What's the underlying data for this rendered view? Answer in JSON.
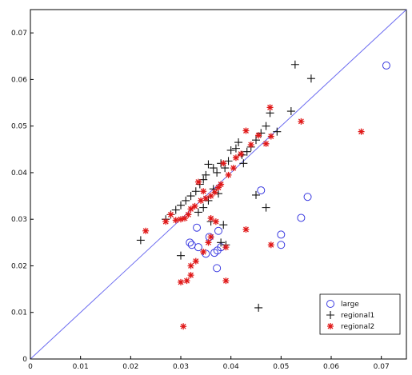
{
  "chart_data": {
    "type": "scatter",
    "title": "",
    "xlabel": "",
    "ylabel": "",
    "xlim": [
      0,
      0.075
    ],
    "ylim": [
      0,
      0.075
    ],
    "x_ticks": [
      "0",
      "0.01",
      "0.02",
      "0.03",
      "0.04",
      "0.05",
      "0.06",
      "0.07"
    ],
    "y_ticks": [
      "0",
      "0.01",
      "0.02",
      "0.03",
      "0.04",
      "0.05",
      "0.06",
      "0.07"
    ],
    "legend_position": "bottom-right",
    "reference_line": {
      "x": [
        0,
        0.075
      ],
      "y": [
        0,
        0.075
      ],
      "color": "#6a6af0"
    },
    "series": [
      {
        "name": "large",
        "marker": "circle",
        "color": "#3a3ae0",
        "points": [
          [
            0.071,
            0.063
          ],
          [
            0.0553,
            0.0348
          ],
          [
            0.054,
            0.0303
          ],
          [
            0.05,
            0.0267
          ],
          [
            0.05,
            0.0245
          ],
          [
            0.046,
            0.0362
          ],
          [
            0.038,
            0.024
          ],
          [
            0.0375,
            0.0275
          ],
          [
            0.0373,
            0.0233
          ],
          [
            0.0367,
            0.0228
          ],
          [
            0.0357,
            0.0262
          ],
          [
            0.035,
            0.0226
          ],
          [
            0.0335,
            0.024
          ],
          [
            0.0332,
            0.0282
          ],
          [
            0.0322,
            0.0245
          ],
          [
            0.0318,
            0.025
          ],
          [
            0.0372,
            0.0195
          ]
        ]
      },
      {
        "name": "regional1",
        "marker": "plus",
        "color": "#111111",
        "points": [
          [
            0.056,
            0.0602
          ],
          [
            0.0528,
            0.0632
          ],
          [
            0.052,
            0.0532
          ],
          [
            0.0492,
            0.0488
          ],
          [
            0.0478,
            0.0528
          ],
          [
            0.047,
            0.05
          ],
          [
            0.046,
            0.0485
          ],
          [
            0.045,
            0.047
          ],
          [
            0.044,
            0.0455
          ],
          [
            0.0432,
            0.0445
          ],
          [
            0.0422,
            0.0438
          ],
          [
            0.0415,
            0.0465
          ],
          [
            0.041,
            0.0452
          ],
          [
            0.04,
            0.0448
          ],
          [
            0.0395,
            0.0425
          ],
          [
            0.0388,
            0.041
          ],
          [
            0.038,
            0.042
          ],
          [
            0.0372,
            0.04
          ],
          [
            0.0365,
            0.041
          ],
          [
            0.0355,
            0.0418
          ],
          [
            0.035,
            0.0395
          ],
          [
            0.0345,
            0.0385
          ],
          [
            0.0338,
            0.0375
          ],
          [
            0.033,
            0.036
          ],
          [
            0.032,
            0.035
          ],
          [
            0.031,
            0.034
          ],
          [
            0.03,
            0.033
          ],
          [
            0.029,
            0.032
          ],
          [
            0.028,
            0.031
          ],
          [
            0.027,
            0.03
          ],
          [
            0.022,
            0.0255
          ],
          [
            0.03,
            0.0222
          ],
          [
            0.036,
            0.0295
          ],
          [
            0.0385,
            0.0288
          ],
          [
            0.039,
            0.0245
          ],
          [
            0.038,
            0.025
          ],
          [
            0.045,
            0.0352
          ],
          [
            0.047,
            0.0325
          ],
          [
            0.0455,
            0.011
          ],
          [
            0.0335,
            0.0315
          ],
          [
            0.0345,
            0.0325
          ],
          [
            0.0355,
            0.034
          ],
          [
            0.0365,
            0.0365
          ],
          [
            0.0375,
            0.0355
          ],
          [
            0.0425,
            0.042
          ]
        ]
      },
      {
        "name": "regional2",
        "marker": "star",
        "color": "#e01818",
        "points": [
          [
            0.066,
            0.0488
          ],
          [
            0.054,
            0.051
          ],
          [
            0.0478,
            0.054
          ],
          [
            0.048,
            0.0478
          ],
          [
            0.047,
            0.0462
          ],
          [
            0.0455,
            0.048
          ],
          [
            0.044,
            0.046
          ],
          [
            0.043,
            0.049
          ],
          [
            0.042,
            0.044
          ],
          [
            0.041,
            0.0432
          ],
          [
            0.0405,
            0.041
          ],
          [
            0.0395,
            0.0395
          ],
          [
            0.0385,
            0.042
          ],
          [
            0.038,
            0.0375
          ],
          [
            0.0375,
            0.0368
          ],
          [
            0.0368,
            0.0358
          ],
          [
            0.036,
            0.035
          ],
          [
            0.035,
            0.0345
          ],
          [
            0.034,
            0.034
          ],
          [
            0.0335,
            0.038
          ],
          [
            0.0328,
            0.0328
          ],
          [
            0.032,
            0.0322
          ],
          [
            0.0315,
            0.031
          ],
          [
            0.0308,
            0.0302
          ],
          [
            0.03,
            0.03
          ],
          [
            0.029,
            0.0298
          ],
          [
            0.028,
            0.031
          ],
          [
            0.027,
            0.0295
          ],
          [
            0.023,
            0.0275
          ],
          [
            0.03,
            0.0165
          ],
          [
            0.0312,
            0.0168
          ],
          [
            0.032,
            0.018
          ],
          [
            0.0305,
            0.007
          ],
          [
            0.032,
            0.02
          ],
          [
            0.033,
            0.021
          ],
          [
            0.0345,
            0.023
          ],
          [
            0.0355,
            0.025
          ],
          [
            0.036,
            0.0262
          ],
          [
            0.037,
            0.0295
          ],
          [
            0.039,
            0.024
          ],
          [
            0.039,
            0.0168
          ],
          [
            0.043,
            0.0278
          ],
          [
            0.048,
            0.0245
          ],
          [
            0.0345,
            0.036
          ],
          [
            0.036,
            0.0302
          ]
        ]
      }
    ]
  }
}
